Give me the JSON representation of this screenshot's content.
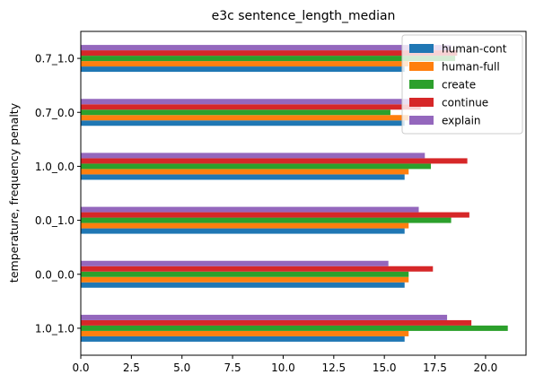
{
  "chart_data": {
    "type": "bar",
    "orientation": "horizontal",
    "title": "e3c sentence_length_median",
    "xlabel": "",
    "ylabel": "temperature, frequency penalty",
    "xlim": [
      0,
      22
    ],
    "xticks": [
      0.0,
      2.5,
      5.0,
      7.5,
      10.0,
      12.5,
      15.0,
      17.5,
      20.0
    ],
    "xtick_labels": [
      "0.0",
      "2.5",
      "5.0",
      "7.5",
      "10.0",
      "12.5",
      "15.0",
      "17.5",
      "20.0"
    ],
    "grid": false,
    "legend_position": "top-right",
    "categories": [
      "1.0_1.0",
      "0.0_0.0",
      "0.0_1.0",
      "1.0_0.0",
      "0.7_0.0",
      "0.7_1.0"
    ],
    "series": [
      {
        "name": "human-cont",
        "color": "#1f77b4",
        "values": [
          16.0,
          16.0,
          16.0,
          16.0,
          16.0,
          16.0
        ]
      },
      {
        "name": "human-full",
        "color": "#ff7f0e",
        "values": [
          16.2,
          16.2,
          16.2,
          16.2,
          16.2,
          16.2
        ]
      },
      {
        "name": "create",
        "color": "#2ca02c",
        "values": [
          21.1,
          16.2,
          18.3,
          17.3,
          15.3,
          18.5
        ]
      },
      {
        "name": "continue",
        "color": "#d62728",
        "values": [
          19.3,
          17.4,
          19.2,
          19.1,
          16.8,
          18.6
        ]
      },
      {
        "name": "explain",
        "color": "#9467bd",
        "values": [
          18.1,
          15.2,
          16.7,
          17.0,
          16.9,
          18.3
        ]
      }
    ]
  }
}
